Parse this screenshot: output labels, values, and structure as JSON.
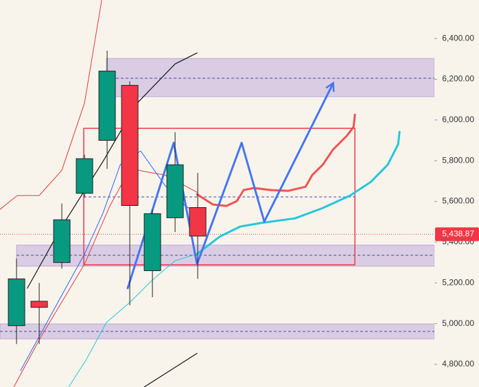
{
  "chart_data": {
    "type": "candlestick",
    "xlim": [
      -0.73,
      18.45
    ],
    "ylim": [
      4689,
      6589
    ],
    "yticks": [
      {
        "value": 6400,
        "label": "6,400.00"
      },
      {
        "value": 6200,
        "label": "6,200.00"
      },
      {
        "value": 6000,
        "label": "6,000.00"
      },
      {
        "value": 5800,
        "label": "5,800.00"
      },
      {
        "value": 5600,
        "label": "5,600.00"
      },
      {
        "value": 5400,
        "label": "5,400.00"
      },
      {
        "value": 5200,
        "label": "5,200.00"
      },
      {
        "value": 5000,
        "label": "5,000.00"
      },
      {
        "value": 4800,
        "label": "4,800.00"
      }
    ],
    "up_color": "#089981",
    "down_color": "#f23645",
    "candles": {
      "x": [
        0,
        1,
        2,
        3,
        4,
        5,
        6,
        7,
        8
      ],
      "open": [
        4990,
        5110,
        5300,
        5640,
        5900,
        6170,
        5260,
        5520,
        5570
      ],
      "high": [
        5320,
        5200,
        5590,
        5830,
        6340,
        6190,
        5560,
        5940,
        5740
      ],
      "low": [
        4900,
        4900,
        5270,
        5620,
        5760,
        5090,
        5130,
        5450,
        5220
      ],
      "close": [
        5220,
        5080,
        5510,
        5810,
        6240,
        5580,
        5540,
        5780,
        5430
      ]
    },
    "zones": [
      {
        "x0": 3.97,
        "low": 6114,
        "high": 6302,
        "mid": 6205
      },
      {
        "x0": 0,
        "low": 5282,
        "high": 5386,
        "mid": 5336
      },
      {
        "x0": -0.73,
        "low": 4925,
        "high": 4999,
        "mid": 4962
      }
    ],
    "zone_color": "#9575cd",
    "box": {
      "x0": 2.97,
      "x1": 14.94,
      "low": 5289,
      "high": 5959,
      "mid": 5622,
      "color": "#f23645"
    },
    "lines": [
      {
        "color": "#111111",
        "width": 1.2,
        "x": [
          0.48,
          2,
          3.82,
          5.33,
          7,
          7.97
        ],
        "values": [
          5174,
          5477,
          5797,
          6083,
          6275,
          6329
        ]
      },
      {
        "color": "#111111",
        "width": 1.2,
        "x": [
          5.64,
          7.97
        ],
        "values": [
          4689,
          4854
        ]
      },
      {
        "color": "#e53935",
        "width": 1,
        "x": [
          -0.73,
          0.03,
          1,
          2,
          3,
          3.76
        ],
        "values": [
          5561,
          5629,
          5629,
          5753,
          6083,
          6589
        ]
      },
      {
        "color": "#e53935",
        "width": 1,
        "x": [
          -0.12,
          1.09,
          3,
          4.12,
          5.03,
          5.64,
          6.55,
          7.97
        ],
        "values": [
          4689,
          4938,
          5292,
          5578,
          5763,
          5747,
          5730,
          5645
        ]
      },
      {
        "color": "#2962ff",
        "width": 1,
        "x": [
          0.18,
          2,
          3,
          3.82,
          4.58,
          5.48,
          6.55,
          7.45,
          7.97
        ],
        "values": [
          4770,
          5140,
          5342,
          5544,
          5780,
          5848,
          5679,
          5578,
          5544
        ]
      },
      {
        "color": "#26c6da",
        "width": 1,
        "x": [
          2.3,
          3.06,
          3.97,
          5.03,
          5.94,
          7,
          7.97
        ],
        "values": [
          4689,
          4820,
          5006,
          5107,
          5208,
          5309,
          5342
        ]
      },
      {
        "color": "#ef5350",
        "width": 3,
        "x": [
          7.97,
          8.67,
          9.27,
          9.73,
          10.03,
          10.48,
          11.24,
          12,
          12.76,
          13.06,
          13.52,
          13.97,
          14.58,
          14.88,
          14.94
        ],
        "values": [
          5635,
          5585,
          5578,
          5602,
          5656,
          5666,
          5656,
          5652,
          5672,
          5730,
          5780,
          5854,
          5922,
          5965,
          6026
        ]
      },
      {
        "color": "#26c6da",
        "width": 3,
        "x": [
          7.97,
          8.97,
          9.88,
          10.79,
          12.3,
          13.52,
          14.73,
          15.64,
          16.39,
          16.85,
          16.91
        ],
        "values": [
          5342,
          5427,
          5477,
          5494,
          5517,
          5568,
          5629,
          5696,
          5780,
          5881,
          5942
        ]
      },
      {
        "color": "#4475f2",
        "width": 3,
        "arrow": true,
        "x": [
          4.91,
          6.94,
          7.97,
          9.94,
          10.94,
          13.97
        ],
        "values": [
          5174,
          5888,
          5292,
          5888,
          5501,
          6178
        ]
      }
    ],
    "last_price": 5438.87,
    "last_price_label": "5,438.87"
  }
}
